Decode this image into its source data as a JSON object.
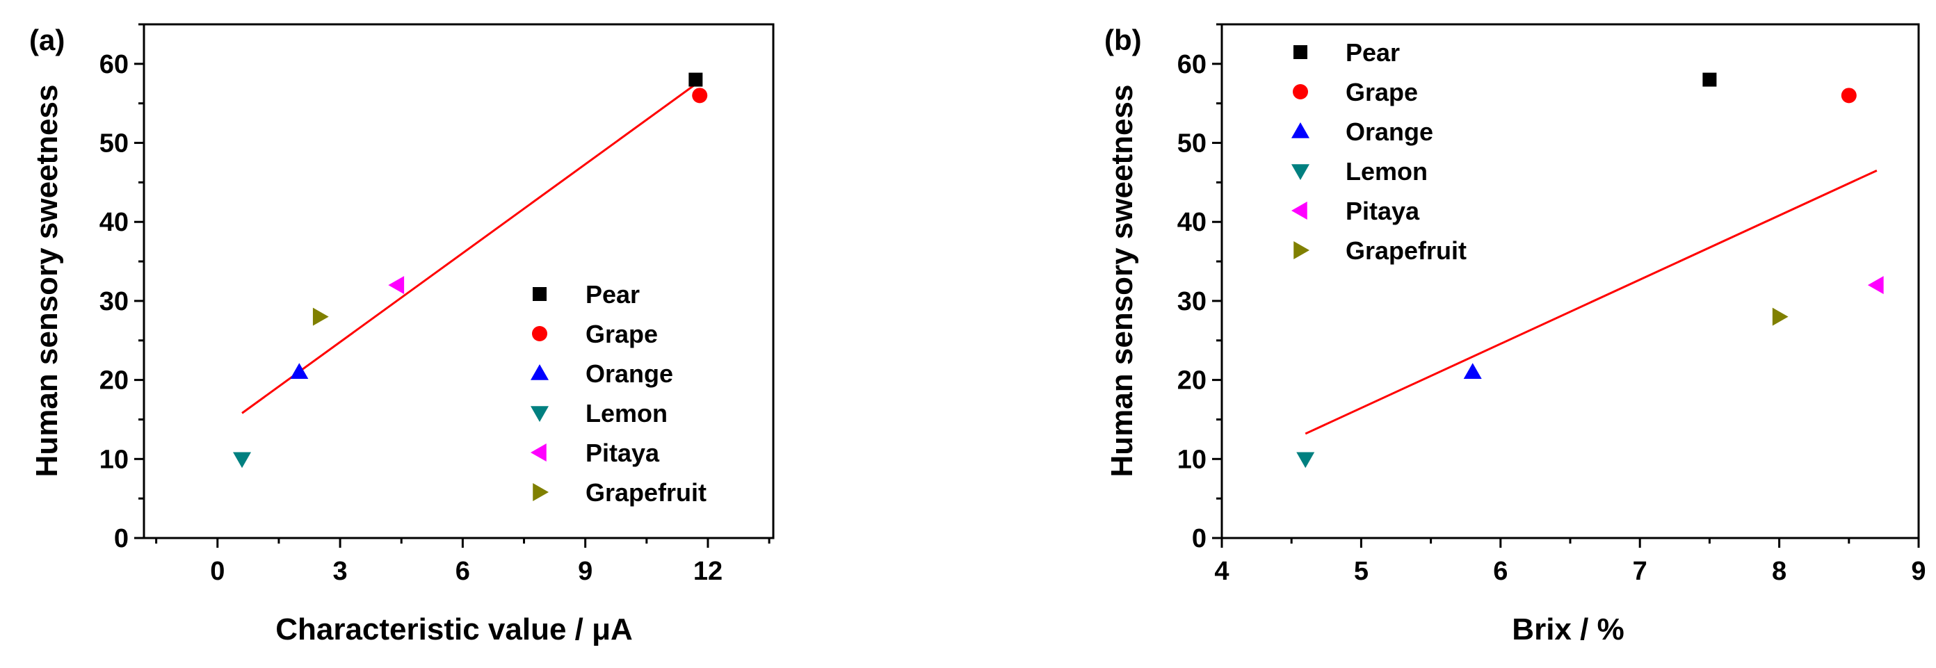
{
  "figure": {
    "panels": [
      "(a)",
      "(b)"
    ]
  },
  "chart_data": [
    {
      "type": "scatter",
      "panel_label": "(a)",
      "xlabel": "Characteristic value / μA",
      "ylabel": "Human sensory sweetness",
      "xlim": [
        -1.8,
        13.6
      ],
      "ylim": [
        0,
        65
      ],
      "xticks": [
        0,
        3,
        6,
        9,
        12
      ],
      "xtick_labels": [
        "0",
        "3",
        "6",
        "9",
        "12"
      ],
      "yticks": [
        0,
        10,
        20,
        30,
        40,
        50,
        60
      ],
      "ytick_labels": [
        "0",
        "10",
        "20",
        "30",
        "40",
        "50",
        "60"
      ],
      "legend_position": "bottom-right",
      "series": [
        {
          "name": "Pear",
          "marker": "square",
          "color": "#000000",
          "x": 11.7,
          "y": 58
        },
        {
          "name": "Grape",
          "marker": "circle",
          "color": "#ff0000",
          "x": 11.8,
          "y": 56
        },
        {
          "name": "Orange",
          "marker": "triangle-up",
          "color": "#0000ff",
          "x": 2.0,
          "y": 21
        },
        {
          "name": "Lemon",
          "marker": "triangle-down",
          "color": "#008080",
          "x": 0.6,
          "y": 10
        },
        {
          "name": "Pitaya",
          "marker": "triangle-left",
          "color": "#ff00ff",
          "x": 4.4,
          "y": 32
        },
        {
          "name": "Grapefruit",
          "marker": "triangle-right",
          "color": "#808000",
          "x": 2.5,
          "y": 28
        }
      ],
      "fit_line": {
        "color": "#ff0000",
        "x": [
          0.6,
          11.8
        ],
        "y": [
          15.8,
          57.8
        ]
      }
    },
    {
      "type": "scatter",
      "panel_label": "(b)",
      "xlabel": "Brix / %",
      "ylabel": "Human sensory sweetness",
      "xlim": [
        4,
        9
      ],
      "ylim": [
        0,
        65
      ],
      "xticks": [
        4,
        5,
        6,
        7,
        8,
        9
      ],
      "xtick_labels": [
        "4",
        "5",
        "6",
        "7",
        "8",
        "9"
      ],
      "yticks": [
        0,
        10,
        20,
        30,
        40,
        50,
        60
      ],
      "ytick_labels": [
        "0",
        "10",
        "20",
        "30",
        "40",
        "50",
        "60"
      ],
      "legend_position": "top-left",
      "series": [
        {
          "name": "Pear",
          "marker": "square",
          "color": "#000000",
          "x": 7.5,
          "y": 58
        },
        {
          "name": "Grape",
          "marker": "circle",
          "color": "#ff0000",
          "x": 8.5,
          "y": 56
        },
        {
          "name": "Orange",
          "marker": "triangle-up",
          "color": "#0000ff",
          "x": 5.8,
          "y": 21
        },
        {
          "name": "Lemon",
          "marker": "triangle-down",
          "color": "#008080",
          "x": 4.6,
          "y": 10
        },
        {
          "name": "Pitaya",
          "marker": "triangle-left",
          "color": "#ff00ff",
          "x": 8.7,
          "y": 32
        },
        {
          "name": "Grapefruit",
          "marker": "triangle-right",
          "color": "#808000",
          "x": 8.0,
          "y": 28
        }
      ],
      "fit_line": {
        "color": "#ff0000",
        "x": [
          4.6,
          8.7
        ],
        "y": [
          13.2,
          46.5
        ]
      }
    }
  ]
}
